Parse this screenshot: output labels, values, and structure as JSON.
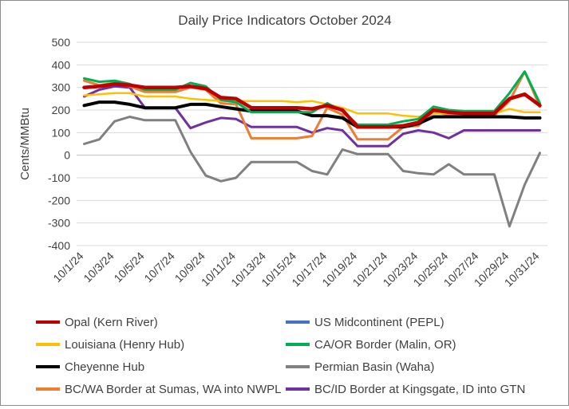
{
  "chart_data": {
    "type": "line",
    "title": "Daily Price Indicators October 2024",
    "ylabel": "Cents/MMBtu",
    "xlabel": "",
    "ylim": [
      -400,
      500
    ],
    "yticks": [
      500,
      400,
      300,
      200,
      100,
      0,
      -100,
      -200,
      -300,
      -400
    ],
    "x": [
      "10/1/24",
      "10/2/24",
      "10/3/24",
      "10/4/24",
      "10/5/24",
      "10/6/24",
      "10/7/24",
      "10/8/24",
      "10/9/24",
      "10/10/24",
      "10/11/24",
      "10/12/24",
      "10/13/24",
      "10/14/24",
      "10/15/24",
      "10/16/24",
      "10/17/24",
      "10/18/24",
      "10/19/24",
      "10/20/24",
      "10/21/24",
      "10/22/24",
      "10/23/24",
      "10/24/24",
      "10/25/24",
      "10/26/24",
      "10/27/24",
      "10/28/24",
      "10/29/24",
      "10/30/24",
      "10/31/24"
    ],
    "xtick_labels": [
      "10/1/24",
      "10/3/24",
      "10/5/24",
      "10/7/24",
      "10/9/24",
      "10/11/24",
      "10/13/24",
      "10/15/24",
      "10/17/24",
      "10/19/24",
      "10/21/24",
      "10/23/24",
      "10/25/24",
      "10/27/24",
      "10/29/24",
      "10/31/24"
    ],
    "grid": "horizontal",
    "legend_position": "bottom",
    "series": [
      {
        "name": "Opal (Kern River)",
        "color": "#c00000",
        "width": 4.5,
        "values": [
          300,
          305,
          315,
          310,
          300,
          300,
          300,
          305,
          295,
          255,
          250,
          210,
          210,
          210,
          210,
          205,
          220,
          200,
          125,
          125,
          125,
          130,
          145,
          200,
          190,
          185,
          185,
          185,
          250,
          270,
          220
        ]
      },
      {
        "name": "US Midcontinent (PEPL)",
        "color": "#4472c4",
        "width": 2.5,
        "values": [
          null,
          null,
          null,
          null,
          null,
          null,
          null,
          null,
          null,
          null,
          null,
          null,
          null,
          null,
          null,
          null,
          null,
          null,
          null,
          null,
          null,
          null,
          null,
          null,
          null,
          null,
          null,
          null,
          null,
          null,
          null
        ]
      },
      {
        "name": "Louisiana (Henry Hub)",
        "color": "#ffc000",
        "width": 2.5,
        "values": [
          265,
          270,
          275,
          275,
          260,
          260,
          260,
          250,
          245,
          240,
          240,
          240,
          240,
          240,
          235,
          240,
          225,
          210,
          185,
          185,
          185,
          175,
          170,
          185,
          185,
          185,
          185,
          185,
          205,
          190,
          190
        ]
      },
      {
        "name": "CA/OR Border (Malin, OR)",
        "color": "#00b050",
        "width": 3,
        "values": [
          340,
          325,
          330,
          315,
          290,
          290,
          290,
          320,
          305,
          245,
          235,
          190,
          190,
          190,
          190,
          190,
          230,
          195,
          135,
          135,
          135,
          150,
          160,
          215,
          200,
          195,
          195,
          195,
          275,
          370,
          230
        ]
      },
      {
        "name": "Cheyenne Hub",
        "color": "#000000",
        "width": 4,
        "values": [
          220,
          235,
          235,
          225,
          210,
          210,
          210,
          225,
          225,
          215,
          205,
          195,
          195,
          195,
          195,
          175,
          175,
          165,
          125,
          125,
          125,
          125,
          140,
          170,
          170,
          170,
          170,
          170,
          170,
          165,
          165
        ]
      },
      {
        "name": "Permian Basin (Waha)",
        "color": "#808080",
        "width": 3,
        "values": [
          50,
          70,
          150,
          170,
          155,
          155,
          155,
          15,
          -90,
          -115,
          -100,
          -30,
          -30,
          -30,
          -30,
          -70,
          -85,
          25,
          5,
          5,
          5,
          -70,
          -80,
          -85,
          -40,
          -85,
          -85,
          -85,
          -315,
          -130,
          10
        ]
      },
      {
        "name": "BC/WA Border at Sumas, WA into NWPL",
        "color": "#ed7d31",
        "width": 3,
        "values": [
          330,
          310,
          320,
          305,
          280,
          280,
          280,
          300,
          290,
          230,
          225,
          75,
          75,
          75,
          75,
          85,
          210,
          180,
          70,
          70,
          70,
          125,
          130,
          190,
          180,
          175,
          175,
          175,
          240,
          370,
          215
        ]
      },
      {
        "name": "BC/ID Border at Kingsgate, ID into GTN",
        "color": "#7030a0",
        "width": 3,
        "values": [
          260,
          290,
          305,
          300,
          210,
          210,
          210,
          120,
          145,
          165,
          160,
          125,
          125,
          125,
          125,
          100,
          120,
          110,
          40,
          40,
          40,
          95,
          110,
          100,
          75,
          110,
          110,
          110,
          110,
          110,
          110
        ]
      }
    ]
  }
}
